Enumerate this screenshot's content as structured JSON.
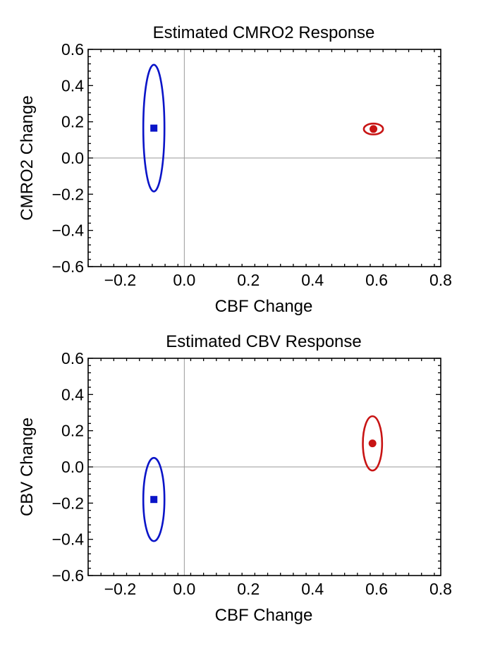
{
  "chart_data": [
    {
      "type": "scatter",
      "title": "Estimated CMRO2 Response",
      "xlabel": "CBF Change",
      "ylabel": "CMRO2 Change",
      "xlim": [
        -0.3,
        0.8
      ],
      "ylim": [
        -0.6,
        0.6
      ],
      "xticks": [
        -0.2,
        0.0,
        0.2,
        0.4,
        0.6,
        0.8
      ],
      "yticks": [
        -0.6,
        -0.4,
        -0.2,
        0.0,
        0.2,
        0.4,
        0.6
      ],
      "xtick_labels": [
        "−0.2",
        "0.0",
        "0.2",
        "0.4",
        "0.6",
        "0.8"
      ],
      "ytick_labels": [
        "−0.6",
        "−0.4",
        "−0.2",
        "0.0",
        "0.2",
        "0.4",
        "0.6"
      ],
      "grid": false,
      "zero_lines": true,
      "series": [
        {
          "marker": "square",
          "color": "#0a14c8",
          "x": -0.095,
          "y": 0.165,
          "ellipse": {
            "rx": 0.033,
            "ry": 0.35
          }
        },
        {
          "marker": "circle",
          "color": "#c81414",
          "x": 0.59,
          "y": 0.16,
          "ellipse": {
            "rx": 0.03,
            "ry": 0.03
          }
        }
      ]
    },
    {
      "type": "scatter",
      "title": "Estimated CBV Response",
      "xlabel": "CBF Change",
      "ylabel": "CBV Change",
      "xlim": [
        -0.3,
        0.8
      ],
      "ylim": [
        -0.6,
        0.6
      ],
      "xticks": [
        -0.2,
        0.0,
        0.2,
        0.4,
        0.6,
        0.8
      ],
      "yticks": [
        -0.6,
        -0.4,
        -0.2,
        0.0,
        0.2,
        0.4,
        0.6
      ],
      "xtick_labels": [
        "−0.2",
        "0.0",
        "0.2",
        "0.4",
        "0.6",
        "0.8"
      ],
      "ytick_labels": [
        "−0.6",
        "−0.4",
        "−0.2",
        "0.0",
        "0.2",
        "0.4",
        "0.6"
      ],
      "grid": false,
      "zero_lines": true,
      "series": [
        {
          "marker": "square",
          "color": "#0a14c8",
          "x": -0.095,
          "y": -0.18,
          "ellipse": {
            "rx": 0.033,
            "ry": 0.23
          }
        },
        {
          "marker": "circle",
          "color": "#c81414",
          "x": 0.587,
          "y": 0.13,
          "ellipse": {
            "rx": 0.03,
            "ry": 0.15
          }
        }
      ]
    }
  ]
}
